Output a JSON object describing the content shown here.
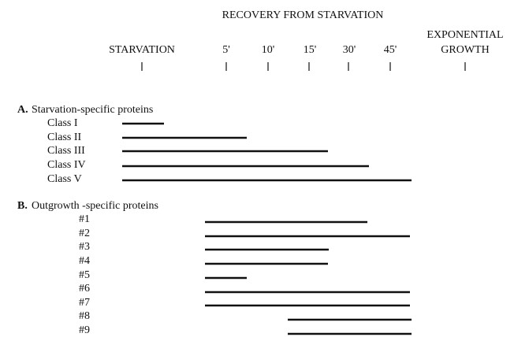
{
  "header": {
    "title": "RECOVERY FROM STARVATION",
    "columns": [
      "STARVATION",
      "5'",
      "10'",
      "15'",
      "30'",
      "45'"
    ],
    "exponential_growth": [
      "EXPONENTIAL",
      "GROWTH"
    ]
  },
  "sections": [
    {
      "letter": "A.",
      "title": "Starvation-specific proteins",
      "rows": [
        "Class I",
        "Class II",
        "Class III",
        "Class IV",
        "Class V"
      ]
    },
    {
      "letter": "B.",
      "title": "Outgrowth -specific proteins",
      "rows": [
        "#1",
        "#2",
        "#3",
        "#4",
        "#5",
        "#6",
        "#7",
        "#8",
        "#9"
      ]
    }
  ]
}
